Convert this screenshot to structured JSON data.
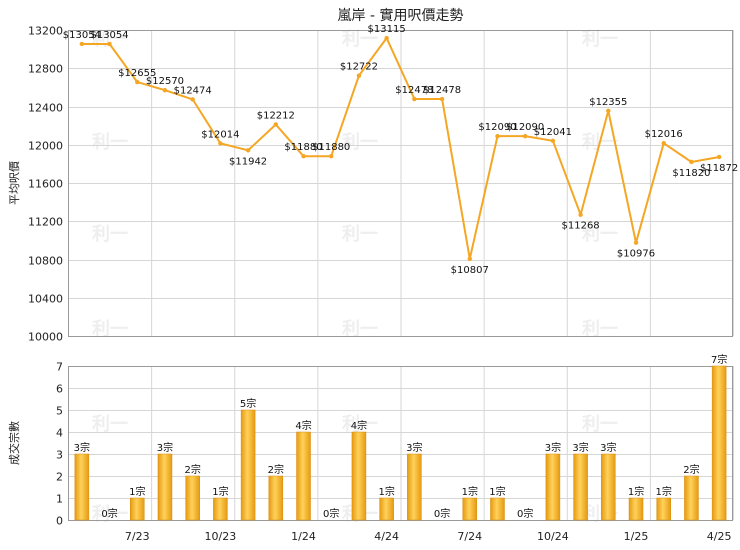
{
  "chart_data": [
    {
      "type": "line",
      "title": "嵐岸 - 實用呎價走勢",
      "ylabel": "平均呎價",
      "ylim": [
        10000,
        13200
      ],
      "yticks": [
        10000,
        10400,
        10800,
        11200,
        11600,
        12000,
        12400,
        12800,
        13200
      ],
      "grid": true,
      "color": "#f5a623",
      "points": [
        {
          "label": "$13054",
          "value": 13054
        },
        {
          "label": "$13054",
          "value": 13054
        },
        {
          "label": "$12655",
          "value": 12655
        },
        {
          "label": "$12570",
          "value": 12570
        },
        {
          "label": "$12474",
          "value": 12474
        },
        {
          "label": "$12014",
          "value": 12014
        },
        {
          "label": "$11942",
          "value": 11942
        },
        {
          "label": "$12212",
          "value": 12212
        },
        {
          "label": "$11880",
          "value": 11880
        },
        {
          "label": "$11880",
          "value": 11880
        },
        {
          "label": "$12722",
          "value": 12722
        },
        {
          "label": "$13115",
          "value": 13115
        },
        {
          "label": "$12478",
          "value": 12478
        },
        {
          "label": "$12478",
          "value": 12478
        },
        {
          "label": "$10807",
          "value": 10807
        },
        {
          "label": "$12090",
          "value": 12090
        },
        {
          "label": "$12090",
          "value": 12090
        },
        {
          "label": "$12041",
          "value": 12041
        },
        {
          "label": "$11268",
          "value": 11268
        },
        {
          "label": "$12355",
          "value": 12355
        },
        {
          "label": "$10976",
          "value": 10976
        },
        {
          "label": "$12016",
          "value": 12016
        },
        {
          "label": "$11820",
          "value": 11820
        },
        {
          "label": "$11872",
          "value": 11872
        }
      ]
    },
    {
      "type": "bar",
      "ylabel": "成交宗數",
      "ylim": [
        0,
        7
      ],
      "yticks": [
        0,
        1,
        2,
        3,
        4,
        5,
        6,
        7
      ],
      "grid": true,
      "color": "#f5a623",
      "bars": [
        {
          "label": "3宗",
          "value": 3
        },
        {
          "label": "0宗",
          "value": 0
        },
        {
          "label": "1宗",
          "value": 1
        },
        {
          "label": "3宗",
          "value": 3
        },
        {
          "label": "2宗",
          "value": 2
        },
        {
          "label": "1宗",
          "value": 1
        },
        {
          "label": "5宗",
          "value": 5
        },
        {
          "label": "2宗",
          "value": 2
        },
        {
          "label": "4宗",
          "value": 4
        },
        {
          "label": "0宗",
          "value": 0
        },
        {
          "label": "4宗",
          "value": 4
        },
        {
          "label": "1宗",
          "value": 1
        },
        {
          "label": "3宗",
          "value": 3
        },
        {
          "label": "0宗",
          "value": 0
        },
        {
          "label": "1宗",
          "value": 1
        },
        {
          "label": "1宗",
          "value": 1
        },
        {
          "label": "0宗",
          "value": 0
        },
        {
          "label": "3宗",
          "value": 3
        },
        {
          "label": "3宗",
          "value": 3
        },
        {
          "label": "3宗",
          "value": 3
        },
        {
          "label": "1宗",
          "value": 1
        },
        {
          "label": "1宗",
          "value": 1
        },
        {
          "label": "2宗",
          "value": 2
        },
        {
          "label": "7宗",
          "value": 7
        }
      ],
      "x_tick_labels": [
        {
          "label": "7/23",
          "index": 2
        },
        {
          "label": "10/23",
          "index": 5
        },
        {
          "label": "1/24",
          "index": 8
        },
        {
          "label": "4/24",
          "index": 11
        },
        {
          "label": "7/24",
          "index": 14
        },
        {
          "label": "10/24",
          "index": 17
        },
        {
          "label": "1/25",
          "index": 20
        },
        {
          "label": "4/25",
          "index": 23
        }
      ]
    }
  ],
  "watermark": "利一"
}
